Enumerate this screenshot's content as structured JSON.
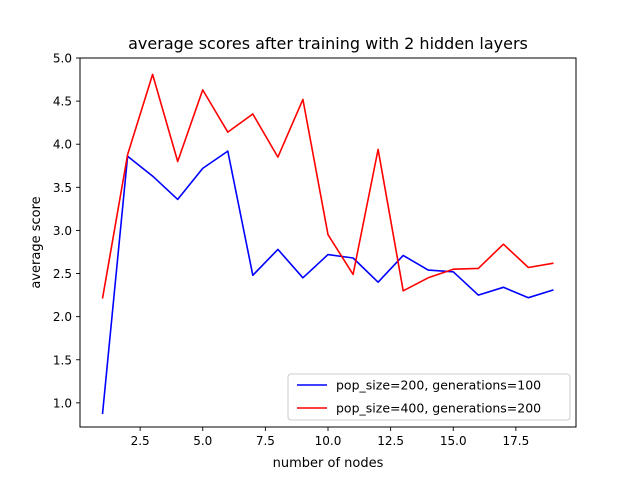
{
  "chart_data": {
    "type": "line",
    "title": "average scores after training with 2 hidden layers",
    "xlabel": "number of nodes",
    "ylabel": "average score",
    "xlim": [
      0.1,
      19.9
    ],
    "ylim": [
      0.72,
      5.0
    ],
    "xticks": [
      "2.5",
      "5.0",
      "7.5",
      "10.0",
      "12.5",
      "15.0",
      "17.5"
    ],
    "yticks": [
      "1.0",
      "1.5",
      "2.0",
      "2.5",
      "3.0",
      "3.5",
      "4.0",
      "4.5",
      "5.0"
    ],
    "legend_position": "bottom-right",
    "grid": false,
    "x": [
      1,
      2,
      3,
      4,
      5,
      6,
      7,
      8,
      9,
      10,
      11,
      12,
      13,
      14,
      15,
      16,
      17,
      18,
      19
    ],
    "series": [
      {
        "name": "pop_size=200, generations=100",
        "color": "#0000ff",
        "values": [
          0.87,
          3.86,
          3.63,
          3.36,
          3.72,
          3.92,
          2.48,
          2.78,
          2.45,
          2.72,
          2.68,
          2.4,
          2.71,
          2.54,
          2.52,
          2.25,
          2.34,
          2.22,
          2.31
        ]
      },
      {
        "name": "pop_size=400, generations=200",
        "color": "#ff0000",
        "values": [
          2.21,
          3.88,
          4.81,
          3.8,
          4.63,
          4.14,
          4.35,
          3.85,
          4.52,
          2.95,
          2.49,
          3.94,
          2.3,
          2.45,
          2.55,
          2.56,
          2.84,
          2.57,
          2.62
        ]
      }
    ]
  }
}
